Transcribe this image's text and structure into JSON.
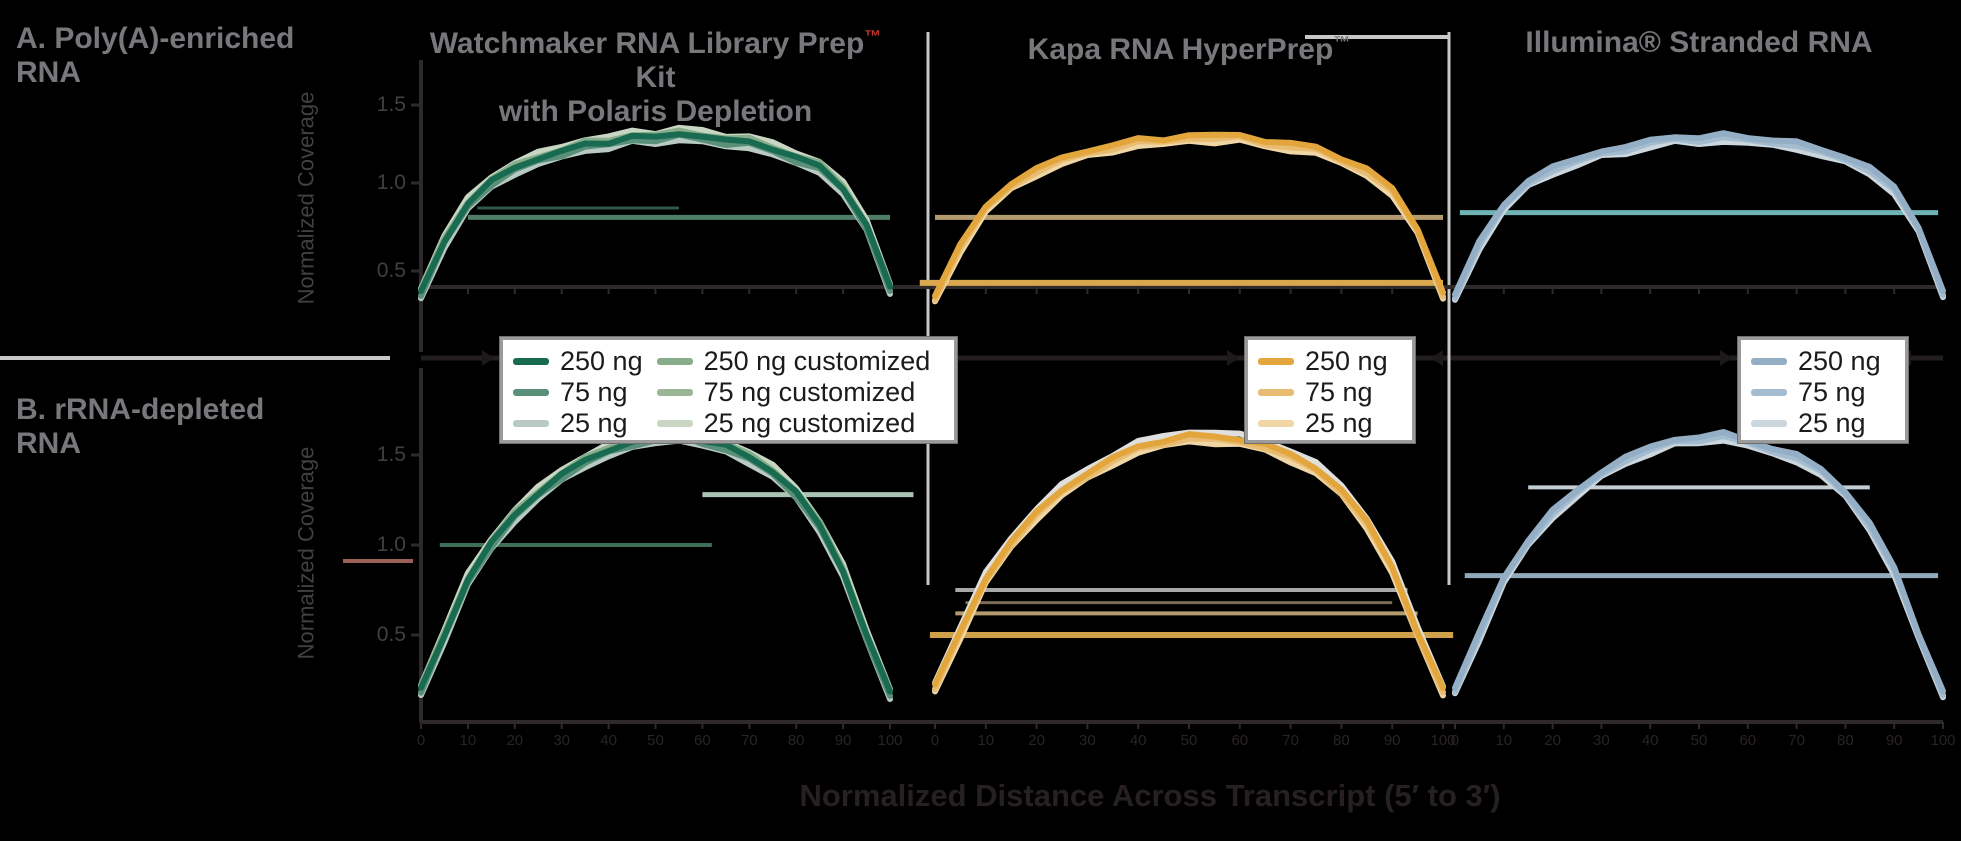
{
  "figure": {
    "row_labels": {
      "a_line1": "A. Poly(A)-enriched",
      "a_line2": "RNA",
      "b_line1": "B. rRNA-depleted",
      "b_line2": "RNA"
    },
    "column_titles": [
      {
        "pre": "Watchmaker RNA Library Prep",
        "tm": "™",
        "post": " Kit",
        "line2": "with Polaris Depletion"
      },
      {
        "pre": "Kapa RNA HyperPrep",
        "tm": "™",
        "post": "",
        "line2": ""
      },
      {
        "pre": "Illumina® Stranded RNA",
        "tm": "",
        "post": "",
        "line2": ""
      }
    ],
    "colors": {
      "background": "#000000",
      "label_gray": "#77787b",
      "divider_gray": "#c8c8c8",
      "axis_dark": "#2e292a",
      "baseline_dark": "#221e1f",
      "tm_red": "#c0392b"
    }
  },
  "axis": {
    "y_title": "Normalized Coverage",
    "x_title": "Normalized Distance Across Transcript (5′ to 3′)",
    "y_ticks": [
      "1.5",
      "1.0",
      "0.5"
    ],
    "x_ticks": [
      "0",
      "10",
      "20",
      "30",
      "40",
      "50",
      "60",
      "70",
      "80",
      "90",
      "100"
    ]
  },
  "legends": [
    {
      "id": "watchmaker-legend",
      "columns": [
        [
          {
            "label": "250 ng",
            "color": "#186a50"
          },
          {
            "label": "75 ng",
            "color": "#5a9079"
          },
          {
            "label": "25 ng",
            "color": "#b9cac2"
          }
        ],
        [
          {
            "label": "250 ng customized",
            "color": "#87ad8b"
          },
          {
            "label": "75 ng customized",
            "color": "#9ab694"
          },
          {
            "label": "25 ng customized",
            "color": "#c9d6c4"
          }
        ]
      ]
    },
    {
      "id": "kapa-legend",
      "columns": [
        [
          {
            "label": "250 ng",
            "color": "#e2a63d"
          },
          {
            "label": "75 ng",
            "color": "#e8bc72"
          },
          {
            "label": "25 ng",
            "color": "#f0d6a4"
          }
        ]
      ]
    },
    {
      "id": "illumina-legend",
      "columns": [
        [
          {
            "label": "250 ng",
            "color": "#94afc5"
          },
          {
            "label": "75 ng",
            "color": "#a4bcd0"
          },
          {
            "label": "25 ng",
            "color": "#ccd6dd"
          }
        ]
      ]
    }
  ],
  "chart_data": {
    "type": "line",
    "x_unit": "percent distance along transcript, 0-100 step 5",
    "ylim_row_a": [
      0.2,
      1.6
    ],
    "ylim_row_b": [
      0.0,
      1.9
    ],
    "grid": false,
    "panels": [
      {
        "id": "A1",
        "row": "A",
        "col": "c1",
        "values": [
          0.3,
          0.63,
          0.87,
          1.01,
          1.1,
          1.16,
          1.2,
          1.25,
          1.26,
          1.3,
          1.29,
          1.32,
          1.3,
          1.27,
          1.27,
          1.22,
          1.16,
          1.11,
          0.97,
          0.73,
          0.33
        ],
        "layers": [
          {
            "color": "#b9cac2",
            "dy": 6
          },
          {
            "color": "#c9d6c4",
            "dy": -5
          },
          {
            "color": "#5a9079",
            "dy": 3
          },
          {
            "color": "#87ad8b",
            "dy": -2
          },
          {
            "color": "#186a50",
            "dy": 0
          }
        ],
        "flats": [
          {
            "v": 0.78,
            "x0": 0.1,
            "x1": 1.0,
            "color": "#4e7d68",
            "w": 5
          },
          {
            "v": 0.84,
            "x0": 0.12,
            "x1": 0.55,
            "color": "#31594a",
            "w": 3
          }
        ]
      },
      {
        "id": "A2",
        "row": "A",
        "col": "c2",
        "values": [
          0.28,
          0.6,
          0.85,
          1.0,
          1.09,
          1.16,
          1.21,
          1.24,
          1.28,
          1.28,
          1.31,
          1.3,
          1.31,
          1.27,
          1.25,
          1.23,
          1.16,
          1.09,
          0.96,
          0.71,
          0.3
        ],
        "layers": [
          {
            "color": "#f0d6a4",
            "dy": 6
          },
          {
            "color": "#e8bc72",
            "dy": 3
          },
          {
            "color": "#e2a63d",
            "dy": 0
          }
        ],
        "flats": [
          {
            "v": 0.78,
            "x0": 0.0,
            "x1": 1.0,
            "color": "#b49b6e",
            "w": 5
          },
          {
            "v": 0.36,
            "x0": -0.03,
            "x1": 1.0,
            "color": "#d9a84e",
            "w": 6
          }
        ]
      },
      {
        "id": "A3",
        "row": "A",
        "col": "c3",
        "values": [
          0.29,
          0.62,
          0.86,
          1.02,
          1.1,
          1.15,
          1.21,
          1.23,
          1.27,
          1.3,
          1.29,
          1.31,
          1.29,
          1.28,
          1.26,
          1.21,
          1.17,
          1.1,
          0.97,
          0.72,
          0.31
        ],
        "layers": [
          {
            "color": "#ccd6dd",
            "dy": 6
          },
          {
            "color": "#a4bcd0",
            "dy": 3
          },
          {
            "color": "#94afc5",
            "dy": 0
          }
        ],
        "flats": [
          {
            "v": 0.81,
            "x0": 0.01,
            "x1": 0.99,
            "color": "#6fb3b5",
            "w": 5
          }
        ]
      },
      {
        "id": "B1",
        "row": "B",
        "col": "c1",
        "values": [
          0.2,
          0.5,
          0.81,
          1.01,
          1.17,
          1.29,
          1.39,
          1.47,
          1.53,
          1.57,
          1.6,
          1.62,
          1.58,
          1.55,
          1.49,
          1.41,
          1.29,
          1.11,
          0.86,
          0.5,
          0.18
        ],
        "layers": [
          {
            "color": "#b9cac2",
            "dy": 6
          },
          {
            "color": "#c9d6c4",
            "dy": -5
          },
          {
            "color": "#5a9079",
            "dy": 3
          },
          {
            "color": "#87ad8b",
            "dy": -2
          },
          {
            "color": "#186a50",
            "dy": 0
          }
        ],
        "flats": [
          {
            "v": 1.0,
            "x0": 0.04,
            "x1": 0.62,
            "color": "#3f6e59",
            "w": 4
          },
          {
            "v": 1.28,
            "x0": 0.6,
            "x1": 1.05,
            "color": "#a9c3b4",
            "w": 5
          }
        ]
      },
      {
        "id": "B2",
        "row": "B",
        "col": "c2",
        "values": [
          0.22,
          0.52,
          0.82,
          1.02,
          1.18,
          1.31,
          1.4,
          1.48,
          1.55,
          1.58,
          1.61,
          1.6,
          1.59,
          1.56,
          1.5,
          1.43,
          1.31,
          1.13,
          0.88,
          0.52,
          0.2
        ],
        "layers": [
          {
            "color": "#f0d6a4",
            "dy": 6
          },
          {
            "color": "#dfe0de",
            "dy": -4
          },
          {
            "color": "#e8bc72",
            "dy": 3
          },
          {
            "color": "#e2a63d",
            "dy": 0
          }
        ],
        "flats": [
          {
            "v": 0.75,
            "x0": 0.04,
            "x1": 0.93,
            "color": "#a8a8a8",
            "w": 4
          },
          {
            "v": 0.68,
            "x0": 0.06,
            "x1": 0.9,
            "color": "#7a6c55",
            "w": 3
          },
          {
            "v": 0.62,
            "x0": 0.04,
            "x1": 0.95,
            "color": "#b49b6e",
            "w": 4
          },
          {
            "v": 0.5,
            "x0": -0.01,
            "x1": 1.02,
            "color": "#cfa04a",
            "w": 6
          }
        ]
      },
      {
        "id": "B3",
        "row": "B",
        "col": "c3",
        "values": [
          0.21,
          0.51,
          0.82,
          1.03,
          1.19,
          1.3,
          1.41,
          1.49,
          1.54,
          1.59,
          1.6,
          1.62,
          1.58,
          1.54,
          1.5,
          1.42,
          1.3,
          1.12,
          0.87,
          0.51,
          0.19
        ],
        "layers": [
          {
            "color": "#ccd6dd",
            "dy": 6
          },
          {
            "color": "#a4bcd0",
            "dy": 3
          },
          {
            "color": "#94afc5",
            "dy": 0
          }
        ],
        "flats": [
          {
            "v": 0.83,
            "x0": 0.02,
            "x1": 0.99,
            "color": "#8fa9bd",
            "w": 5
          },
          {
            "v": 1.32,
            "x0": 0.15,
            "x1": 0.85,
            "color": "#c2cdd4",
            "w": 4
          }
        ]
      }
    ],
    "annotations": [
      {
        "x0": 343,
        "x1": 413,
        "y": 561,
        "color": "#9d5f55",
        "w": 4
      }
    ]
  }
}
